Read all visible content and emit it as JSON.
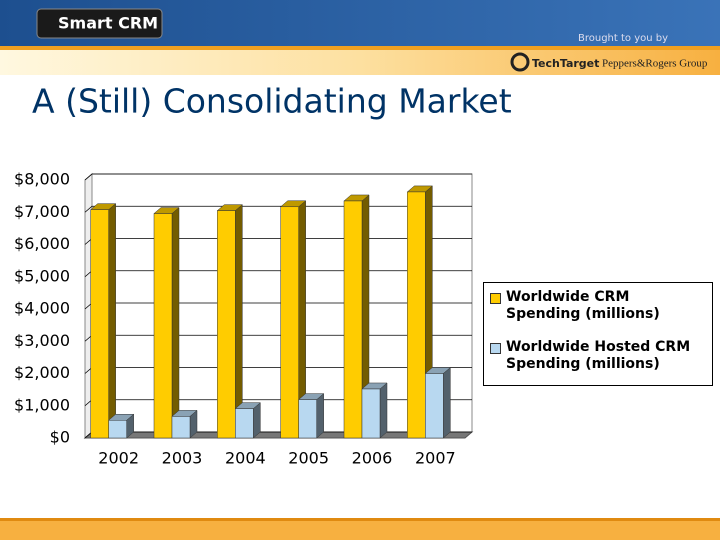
{
  "header": {
    "logo": "Smart CRM",
    "sponsor_note": "Brought to you by",
    "sponsors": [
      "TechTarget",
      "Peppers&Rogers Group"
    ]
  },
  "slide_title": "A (Still) Consolidating Market",
  "chart_data": {
    "type": "bar3d",
    "categories": [
      "2002",
      "2003",
      "2004",
      "2005",
      "2006",
      "2007"
    ],
    "series": [
      {
        "name": "Worldwide CRM Spending (millions)",
        "color": "#ffcc00",
        "values": [
          7080,
          6960,
          7050,
          7170,
          7350,
          7630
        ]
      },
      {
        "name": "Worldwide Hosted CRM Spending (millions)",
        "color": "#b8d8f0",
        "values": [
          550,
          670,
          910,
          1190,
          1520,
          2000
        ]
      }
    ],
    "ylim": [
      0,
      8000
    ],
    "yticks": [
      {
        "value": 0,
        "label": "$0"
      },
      {
        "value": 1000,
        "label": "$1,000"
      },
      {
        "value": 2000,
        "label": "$2,000"
      },
      {
        "value": 3000,
        "label": "$3,000"
      },
      {
        "value": 4000,
        "label": "$4,000"
      },
      {
        "value": 5000,
        "label": "$5,000"
      },
      {
        "value": 6000,
        "label": "$6,000"
      },
      {
        "value": 7000,
        "label": "$7,000"
      },
      {
        "value": 8000,
        "label": "$8,000"
      }
    ],
    "grid": true,
    "legend": "right"
  }
}
